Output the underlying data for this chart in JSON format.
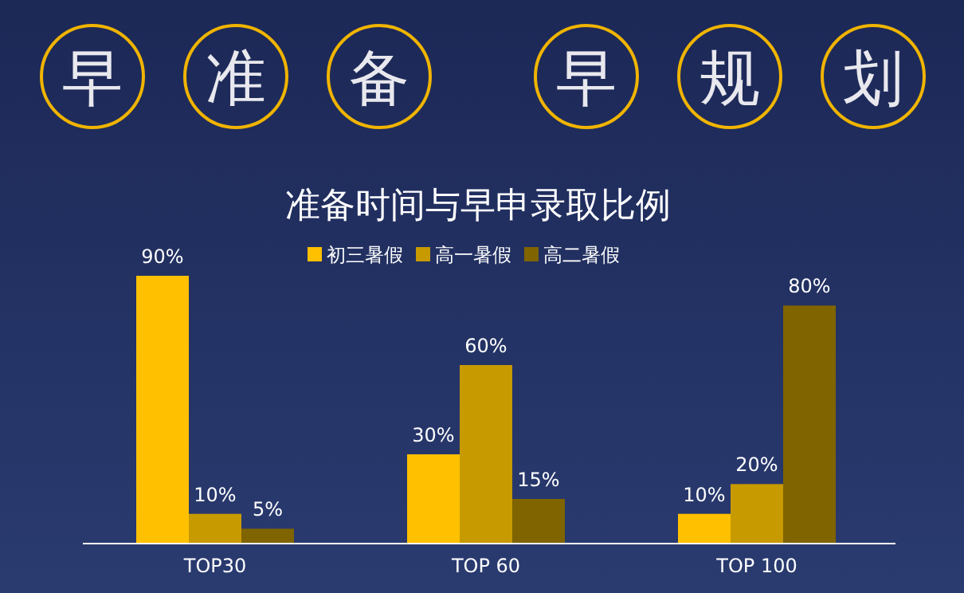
{
  "chart_data": {
    "type": "bar",
    "title": "早准备 早规划",
    "subtitle": "准备时间与早申录取比例",
    "categories": [
      "TOP30",
      "TOP 60",
      "TOP 100"
    ],
    "series": [
      {
        "name": "初三暑假",
        "color": "#ffc000",
        "values": [
          90,
          30,
          10
        ],
        "value_labels": [
          "90%",
          "30%",
          "10%"
        ]
      },
      {
        "name": "高一暑假",
        "color": "#c79a00",
        "values": [
          10,
          60,
          20
        ],
        "value_labels": [
          "10%",
          "60%",
          "20%"
        ]
      },
      {
        "name": "高二暑假",
        "color": "#7f6400",
        "values": [
          5,
          15,
          80
        ],
        "value_labels": [
          "5%",
          "15%",
          "80%"
        ]
      }
    ],
    "legend": "top"
  }
}
